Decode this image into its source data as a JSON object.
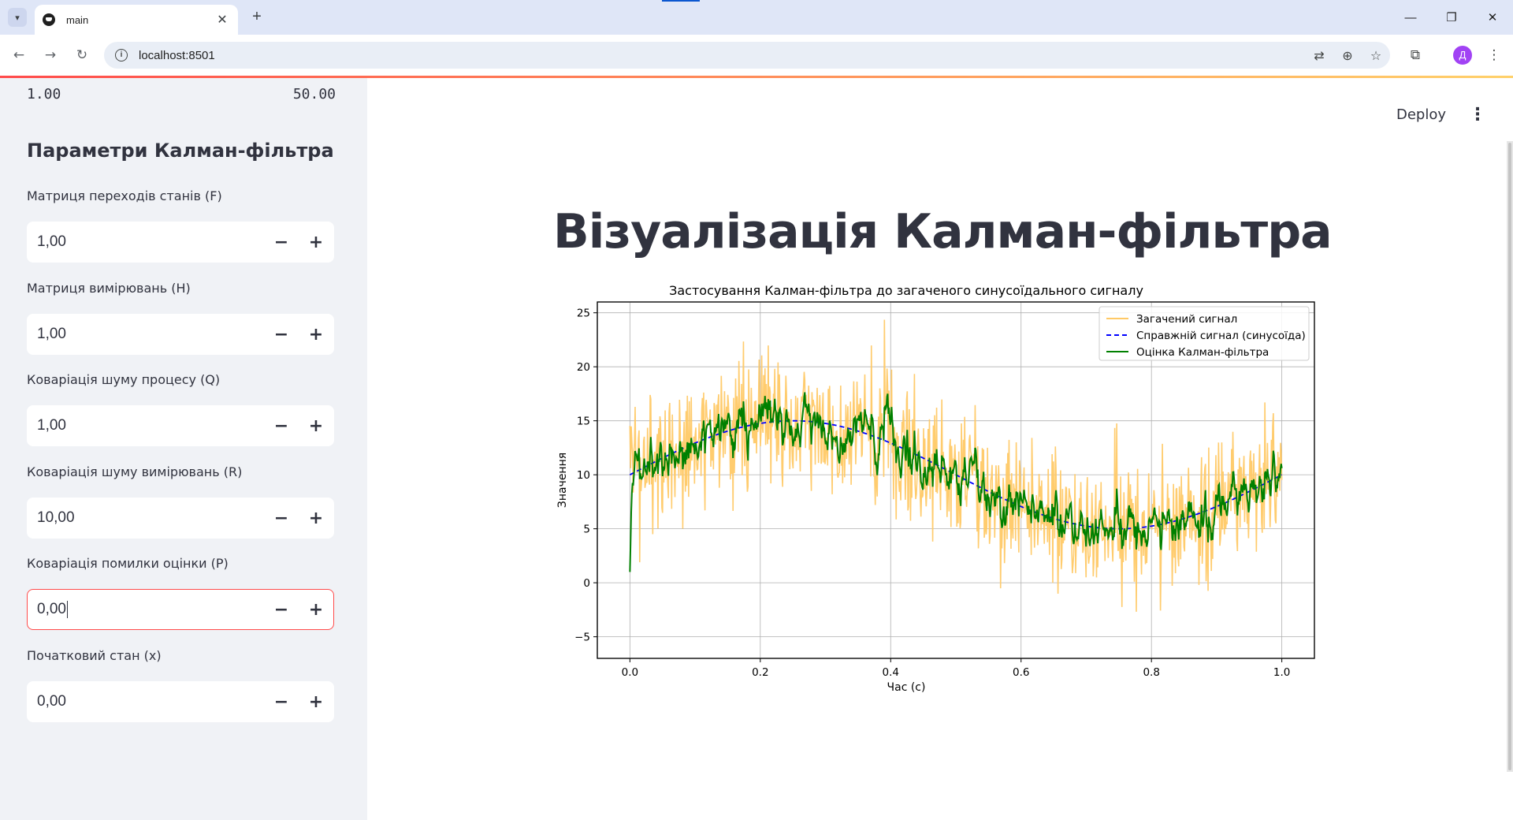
{
  "browser": {
    "tab_title": "main",
    "url": "localhost:8501",
    "profile_initial": "Д",
    "icons": [
      "tab-dropdown-icon",
      "streamlit-favicon",
      "close-icon",
      "plus-icon",
      "back-icon",
      "forward-icon",
      "reload-icon",
      "info-icon",
      "translate-icon",
      "zoom-icon",
      "star-icon",
      "extensions-icon",
      "kebab-icon",
      "minimize-icon",
      "restore-icon",
      "window-close-icon"
    ]
  },
  "sidebar": {
    "slider_min": "1.00",
    "slider_max": "50.00",
    "section_title": "Параметри Калман-фільтра",
    "fields": [
      {
        "label": "Матриця переходів станів (F)",
        "value": "1,00"
      },
      {
        "label": "Матриця вимірювань (H)",
        "value": "1,00"
      },
      {
        "label": "Коваріація шуму процесу (Q)",
        "value": "1,00"
      },
      {
        "label": "Коваріація шуму вимірювань (R)",
        "value": "10,00"
      },
      {
        "label": "Коваріація помилки оцінки (P)",
        "value": "0,00",
        "focused": true
      },
      {
        "label": "Початковий стан (x)",
        "value": "0,00"
      }
    ],
    "minus_symbol": "−",
    "plus_symbol": "+"
  },
  "main": {
    "deploy_label": "Deploy",
    "title": "Візуалізація Калман-фільтра"
  },
  "chart_data": {
    "type": "line",
    "title": "Застосування Калман-фільтра до загаченого синусоїдального сигналу",
    "xlabel": "Час (с)",
    "ylabel": "Значення",
    "xlim": [
      -0.05,
      1.05
    ],
    "ylim": [
      -7,
      26
    ],
    "xticks": [
      0.0,
      0.2,
      0.4,
      0.6,
      0.8,
      1.0
    ],
    "xtick_labels": [
      "0.0",
      "0.2",
      "0.4",
      "0.6",
      "0.8",
      "1.0"
    ],
    "yticks": [
      -5,
      0,
      5,
      10,
      15,
      20,
      25
    ],
    "ytick_labels": [
      "−5",
      "0",
      "5",
      "10",
      "15",
      "20",
      "25"
    ],
    "grid": true,
    "legend_position": "top-right",
    "n_points": 1000,
    "series": [
      {
        "name": "Загачений сигнал",
        "color": "#ffc966",
        "style": "solid",
        "description": "true signal plus gaussian noise (sd ≈ 3.2)"
      },
      {
        "name": "Справжній сигнал (синусоїда)",
        "color": "#0000ff",
        "style": "dashed",
        "formula": "10 + 5*sin(2*pi*t)"
      },
      {
        "name": "Оцінка Калман-фільтра",
        "color": "#008000",
        "style": "solid",
        "starts_at": 1.0
      }
    ]
  }
}
